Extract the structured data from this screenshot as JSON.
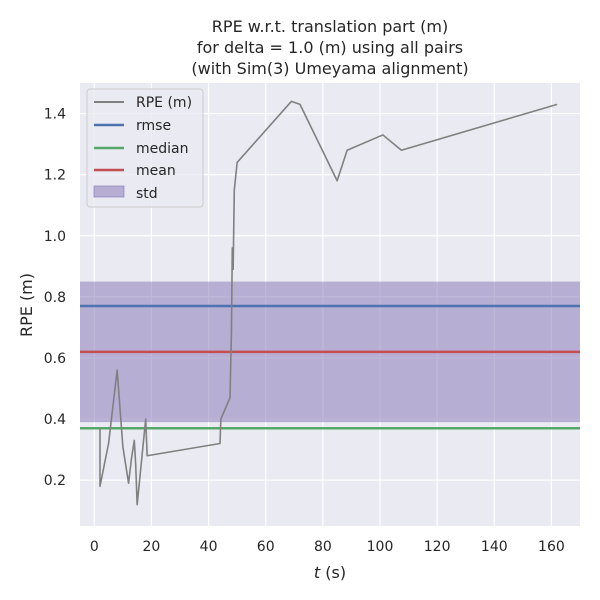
{
  "chart_data": {
    "type": "line",
    "title_lines": [
      "RPE w.r.t. translation part (m)",
      "for delta = 1.0 (m) using all pairs",
      "(with Sim(3) Umeyama alignment)"
    ],
    "xlabel_italic": "t",
    "xlabel_rest": " (s)",
    "ylabel": "RPE (m)",
    "xlim": [
      -5,
      170
    ],
    "ylim": [
      0.05,
      1.5
    ],
    "xticks": [
      0,
      20,
      40,
      60,
      80,
      100,
      120,
      140,
      160
    ],
    "yticks": [
      0.2,
      0.4,
      0.6,
      0.8,
      1.0,
      1.2,
      1.4
    ],
    "ytick_labels": [
      "0.2",
      "0.4",
      "0.6",
      "0.8",
      "1.0",
      "1.2",
      "1.4"
    ],
    "series": [
      {
        "name": "RPE (m)",
        "color": "#808080",
        "x": [
          2,
          2,
          5,
          8,
          10,
          12,
          13,
          14,
          14.5,
          15,
          18,
          18.5,
          44,
          44.3,
          47.5,
          48,
          48.3,
          48.6,
          49,
          50,
          69,
          72,
          85,
          88.5,
          101,
          107.5,
          162
        ],
        "y": [
          0.37,
          0.18,
          0.32,
          0.56,
          0.31,
          0.19,
          0.27,
          0.33,
          0.25,
          0.12,
          0.4,
          0.28,
          0.32,
          0.4,
          0.47,
          0.68,
          0.96,
          0.89,
          1.15,
          1.24,
          1.44,
          1.43,
          1.18,
          1.28,
          1.33,
          1.28,
          1.43
        ]
      }
    ],
    "stats": {
      "rmse": {
        "name": "rmse",
        "value": 0.77,
        "color": "#4c72b0"
      },
      "median": {
        "name": "median",
        "value": 0.37,
        "color": "#55a868"
      },
      "mean": {
        "name": "mean",
        "value": 0.62,
        "color": "#c44e52"
      },
      "std": {
        "name": "std",
        "low": 0.39,
        "high": 0.85,
        "color": "#8172b3"
      }
    },
    "legend_position": "upper-left"
  }
}
